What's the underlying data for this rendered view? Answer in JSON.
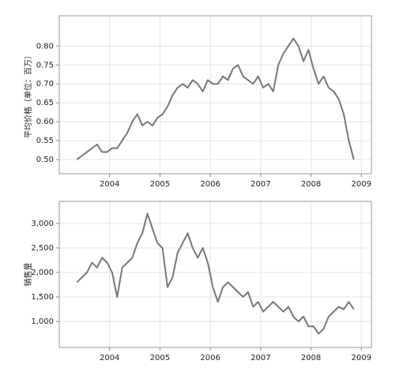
{
  "chart_data": [
    {
      "type": "line",
      "ylabel": "平均价格（单位：百万）",
      "x": [
        2003.35,
        2003.45,
        2003.55,
        2003.65,
        2003.75,
        2003.85,
        2003.95,
        2004.05,
        2004.15,
        2004.25,
        2004.35,
        2004.45,
        2004.55,
        2004.65,
        2004.75,
        2004.85,
        2004.95,
        2005.05,
        2005.15,
        2005.25,
        2005.35,
        2005.45,
        2005.55,
        2005.65,
        2005.75,
        2005.85,
        2005.95,
        2006.05,
        2006.15,
        2006.25,
        2006.35,
        2006.45,
        2006.55,
        2006.65,
        2006.75,
        2006.85,
        2006.95,
        2007.05,
        2007.15,
        2007.25,
        2007.35,
        2007.45,
        2007.55,
        2007.65,
        2007.75,
        2007.85,
        2007.95,
        2008.05,
        2008.15,
        2008.25,
        2008.35,
        2008.45,
        2008.55,
        2008.65,
        2008.75,
        2008.85
      ],
      "series": [
        {
          "color": "#777777",
          "values": [
            0.5,
            0.51,
            0.52,
            0.53,
            0.54,
            0.52,
            0.52,
            0.53,
            0.53,
            0.55,
            0.57,
            0.6,
            0.62,
            0.59,
            0.6,
            0.59,
            0.61,
            0.62,
            0.64,
            0.67,
            0.69,
            0.7,
            0.69,
            0.71,
            0.7,
            0.68,
            0.71,
            0.7,
            0.7,
            0.72,
            0.71,
            0.74,
            0.75,
            0.72,
            0.71,
            0.7,
            0.72,
            0.69,
            0.7,
            0.68,
            0.75,
            0.78,
            0.8,
            0.82,
            0.8,
            0.76,
            0.79,
            0.74,
            0.7,
            0.72,
            0.69,
            0.68,
            0.66,
            0.62,
            0.55,
            0.5
          ]
        }
      ],
      "xlim": [
        2003,
        2009.2
      ],
      "xticks": [
        2004,
        2005,
        2006,
        2007,
        2008,
        2009
      ],
      "ylim": [
        0.4625,
        0.88
      ],
      "yticks": [
        {
          "value": 0.5,
          "label": "0.50"
        },
        {
          "value": 0.55,
          "label": "0.55"
        },
        {
          "value": 0.6,
          "label": "0.60"
        },
        {
          "value": 0.65,
          "label": "0.65"
        },
        {
          "value": 0.7,
          "label": "0.70"
        },
        {
          "value": 0.75,
          "label": "0.75"
        },
        {
          "value": 0.8,
          "label": "0.80"
        }
      ],
      "grid": true
    },
    {
      "type": "line",
      "ylabel": "销售量",
      "x": [
        2003.35,
        2003.45,
        2003.55,
        2003.65,
        2003.75,
        2003.85,
        2003.95,
        2004.05,
        2004.15,
        2004.25,
        2004.35,
        2004.45,
        2004.55,
        2004.65,
        2004.75,
        2004.85,
        2004.95,
        2005.05,
        2005.15,
        2005.25,
        2005.35,
        2005.45,
        2005.55,
        2005.65,
        2005.75,
        2005.85,
        2005.95,
        2006.05,
        2006.15,
        2006.25,
        2006.35,
        2006.45,
        2006.55,
        2006.65,
        2006.75,
        2006.85,
        2006.95,
        2007.05,
        2007.15,
        2007.25,
        2007.35,
        2007.45,
        2007.55,
        2007.65,
        2007.75,
        2007.85,
        2007.95,
        2008.05,
        2008.15,
        2008.25,
        2008.35,
        2008.45,
        2008.55,
        2008.65,
        2008.75,
        2008.85
      ],
      "series": [
        {
          "color": "#777777",
          "values": [
            1800,
            1900,
            2000,
            2200,
            2100,
            2300,
            2200,
            2000,
            1500,
            2100,
            2200,
            2300,
            2600,
            2800,
            3200,
            2900,
            2600,
            2500,
            1700,
            1900,
            2400,
            2600,
            2800,
            2500,
            2300,
            2500,
            2200,
            1700,
            1400,
            1700,
            1800,
            1700,
            1600,
            1500,
            1600,
            1300,
            1400,
            1200,
            1300,
            1400,
            1300,
            1200,
            1300,
            1100,
            1000,
            1100,
            900,
            900,
            750,
            850,
            1100,
            1200,
            1300,
            1250,
            1400,
            1250
          ]
        }
      ],
      "xlim": [
        2003,
        2009.2
      ],
      "xticks": [
        2004,
        2005,
        2006,
        2007,
        2008,
        2009
      ],
      "ylim": [
        470,
        3450
      ],
      "yticks": [
        {
          "value": 1000,
          "label": "1,000"
        },
        {
          "value": 1500,
          "label": "1,500"
        },
        {
          "value": 2000,
          "label": "2,000"
        },
        {
          "value": 2500,
          "label": "2,500"
        },
        {
          "value": 3000,
          "label": "3,000"
        }
      ],
      "grid": true
    }
  ]
}
